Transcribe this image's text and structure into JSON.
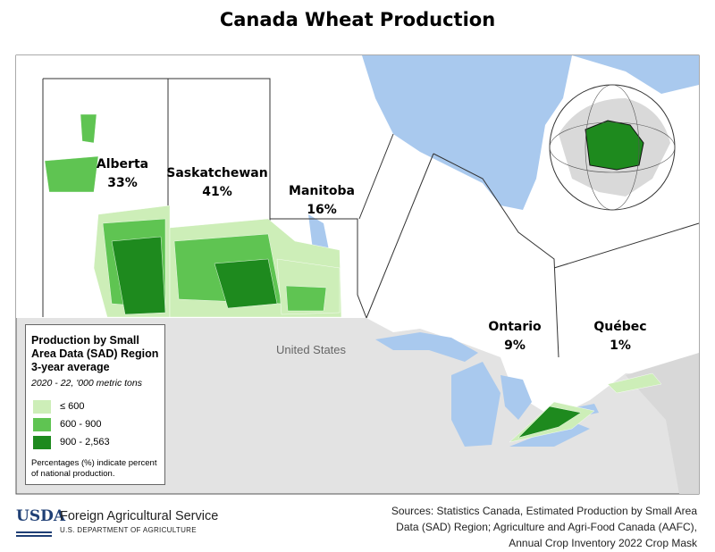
{
  "title": "Canada Wheat Production",
  "regions": [
    {
      "name": "Alberta",
      "share": "33%"
    },
    {
      "name": "Saskatchewan",
      "share": "41%"
    },
    {
      "name": "Manitoba",
      "share": "16%"
    },
    {
      "name": "Ontario",
      "share": "9%"
    },
    {
      "name": "Québec",
      "share": "1%"
    }
  ],
  "country_label": "United States",
  "legend": {
    "title_lines": [
      "Production by Small",
      "Area Data (SAD) Region",
      "3-year average"
    ],
    "subtitle": "2020 - 22, '000 metric tons",
    "items": [
      {
        "label": "≤ 600",
        "color": "#cdeeb8"
      },
      {
        "label": "600 - 900",
        "color": "#5fc452"
      },
      {
        "label": "900 - 2,563",
        "color": "#1e8a1e"
      }
    ],
    "note": "Percentages (%) indicate percent of national production."
  },
  "footer": {
    "logo": "USDA",
    "agency": "Foreign Agricultural Service",
    "department": "U.S. DEPARTMENT OF AGRICULTURE",
    "sources": "Sources: Statistics Canada, Estimated Production by Small Area Data (SAD) Region; Agriculture and Agri-Food Canada (AAFC), Annual Crop Inventory 2022 Crop Mask"
  }
}
